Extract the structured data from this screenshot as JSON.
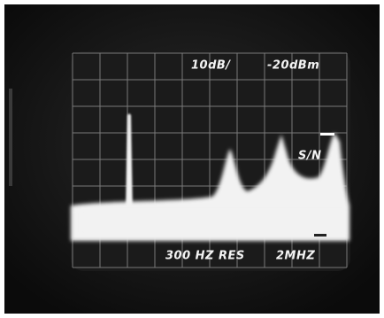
{
  "screen": {
    "labels": {
      "scale": "10dB/",
      "reference": "-20dBm",
      "marker": "S/N",
      "resolution": "300 HZ RES",
      "span": "2MHZ"
    }
  }
}
